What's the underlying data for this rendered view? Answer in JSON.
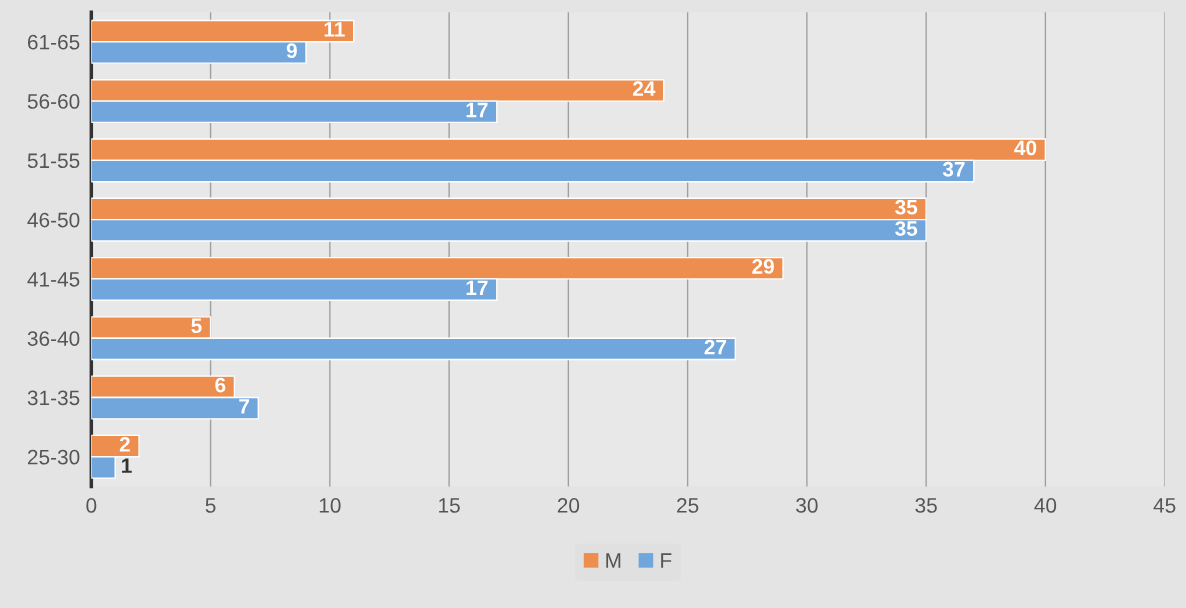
{
  "chart_data": {
    "type": "bar",
    "orientation": "horizontal",
    "categories": [
      "61-65",
      "56-60",
      "51-55",
      "46-50",
      "41-45",
      "36-40",
      "31-35",
      "25-30"
    ],
    "series": [
      {
        "name": "M",
        "color": "#ed8d4e",
        "values": [
          11,
          24,
          40,
          35,
          29,
          5,
          6,
          2
        ]
      },
      {
        "name": "F",
        "color": "#70a6dc",
        "values": [
          9,
          17,
          37,
          35,
          17,
          27,
          7,
          1
        ]
      }
    ],
    "xlim": [
      0,
      45
    ],
    "xticks": [
      0,
      5,
      10,
      15,
      20,
      25,
      30,
      35,
      40,
      45
    ],
    "grid": "x",
    "legend": "bottom",
    "data_labels": true
  }
}
